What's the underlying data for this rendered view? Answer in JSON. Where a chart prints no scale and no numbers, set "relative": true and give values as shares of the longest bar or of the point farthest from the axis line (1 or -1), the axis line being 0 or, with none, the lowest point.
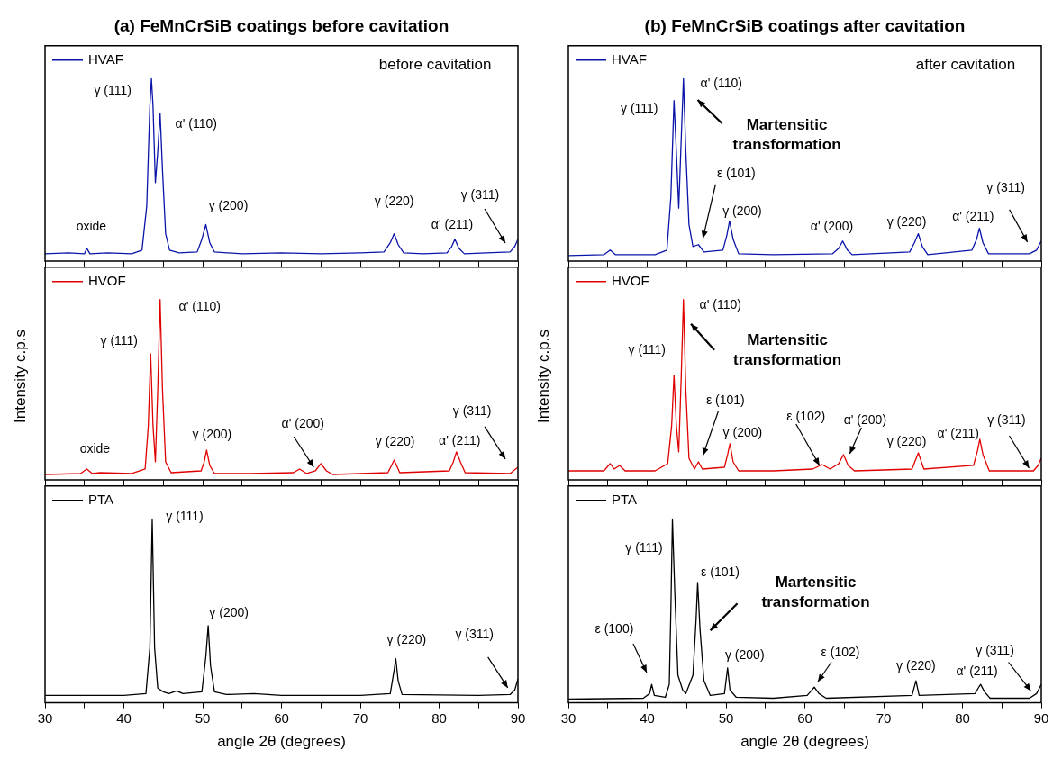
{
  "chart_data": [
    {
      "type": "line",
      "relative": true,
      "title": "(a) FeMnCrSiB coatings before cavitation",
      "legend": "top left",
      "xlim": [
        30,
        90
      ],
      "xticks": [
        30,
        {
          "value": 35,
          "label": null
        },
        40,
        {
          "value": 45,
          "label": null
        },
        50,
        {
          "value": 55,
          "label": null
        },
        60,
        {
          "value": 65,
          "label": null
        },
        70,
        {
          "value": 75,
          "label": null
        },
        80,
        {
          "value": 85,
          "label": null
        },
        90
      ],
      "tick_labels": false,
      "series": [
        {
          "name": "HVAF",
          "color": "#0a14a8",
          "x": [
            30,
            33,
            35,
            35.3,
            35.7,
            38,
            41,
            42.3,
            42.9,
            43.3,
            43.5,
            43.7,
            44.0,
            44.3,
            44.6,
            44.9,
            45.3,
            45.8,
            47,
            49.3,
            49.9,
            50.4,
            50.9,
            51.5,
            55,
            60,
            65,
            70,
            73,
            73.8,
            74.3,
            74.8,
            75.5,
            78,
            81,
            81.6,
            82,
            82.5,
            83.2,
            86,
            89,
            89.6,
            90
          ],
          "values": [
            0.04,
            0.045,
            0.04,
            0.07,
            0.04,
            0.045,
            0.04,
            0.06,
            0.3,
            0.85,
            1,
            0.85,
            0.43,
            0.6,
            0.81,
            0.5,
            0.15,
            0.06,
            0.045,
            0.05,
            0.12,
            0.2,
            0.1,
            0.05,
            0.04,
            0.045,
            0.04,
            0.045,
            0.05,
            0.1,
            0.15,
            0.09,
            0.045,
            0.04,
            0.045,
            0.08,
            0.12,
            0.07,
            0.04,
            0.045,
            0.05,
            0.08,
            0.12
          ]
        }
      ],
      "annotations": [
        {
          "text": "γ (111)",
          "x": 43.5,
          "y": 1
        },
        {
          "text": "α' (110)",
          "x": 44.6,
          "y": 0.81
        },
        {
          "text": "oxide",
          "x": 35.3,
          "y": 0.07
        },
        {
          "text": "γ (200)",
          "x": 50.4,
          "y": 0.2
        },
        {
          "text": "γ (220)",
          "x": 74.3,
          "y": 0.15
        },
        {
          "text": "α' (211)",
          "x": 82,
          "y": 0.12
        },
        "γ (311)",
        "before cavitation"
      ]
    },
    {
      "type": "line",
      "relative": true,
      "ylabel": "Intensity c.p.s",
      "legend": "top left",
      "xlim": [
        30,
        90
      ],
      "xticks": [
        30,
        {
          "value": 35,
          "label": null
        },
        40,
        {
          "value": 45,
          "label": null
        },
        50,
        {
          "value": 55,
          "label": null
        },
        60,
        {
          "value": 65,
          "label": null
        },
        70,
        {
          "value": 75,
          "label": null
        },
        80,
        {
          "value": 85,
          "label": null
        },
        90
      ],
      "tick_labels": false,
      "series": [
        {
          "name": "HVOF",
          "color": "#e00000",
          "x": [
            30,
            34.5,
            35.3,
            36,
            37,
            41,
            42.7,
            43.1,
            43.4,
            43.7,
            44.0,
            44.3,
            44.6,
            44.9,
            45.3,
            46,
            49.8,
            50.2,
            50.5,
            50.9,
            51.5,
            56,
            61.5,
            62.3,
            63.2,
            64.3,
            65,
            65.7,
            66.5,
            73.5,
            74.3,
            75,
            81.3,
            81.8,
            82.2,
            82.7,
            83.3,
            89,
            90
          ],
          "values": [
            0.03,
            0.035,
            0.06,
            0.035,
            0.04,
            0.035,
            0.06,
            0.3,
            0.7,
            0.3,
            0.1,
            0.5,
            1,
            0.5,
            0.1,
            0.04,
            0.05,
            0.1,
            0.165,
            0.08,
            0.035,
            0.035,
            0.04,
            0.06,
            0.035,
            0.05,
            0.09,
            0.05,
            0.03,
            0.04,
            0.11,
            0.04,
            0.05,
            0.1,
            0.155,
            0.1,
            0.04,
            0.035,
            0.07
          ]
        }
      ],
      "annotations": [
        {
          "text": "α' (110)",
          "x": 44.6,
          "y": 1
        },
        {
          "text": "γ (111)",
          "x": 43.4,
          "y": 0.7
        },
        {
          "text": "oxide",
          "x": 35.3,
          "y": 0.06
        },
        {
          "text": "γ (200)",
          "x": 50.5,
          "y": 0.165
        },
        {
          "text": "α' (200)",
          "x": 65,
          "y": 0.09
        },
        {
          "text": "γ (220)",
          "x": 74.3,
          "y": 0.11
        },
        {
          "text": "α' (211)",
          "x": 82.2,
          "y": 0.155
        },
        "γ (311)"
      ]
    },
    {
      "type": "line",
      "relative": true,
      "xlabel": "angle 2θ (degrees)",
      "legend": "top left",
      "xlim": [
        30,
        90
      ],
      "xticks": [
        30,
        {
          "value": 35,
          "label": null
        },
        40,
        {
          "value": 45,
          "label": null
        },
        50,
        {
          "value": 55,
          "label": null
        },
        60,
        {
          "value": 65,
          "label": null
        },
        70,
        {
          "value": 75,
          "label": null
        },
        80,
        {
          "value": 85,
          "label": null
        },
        90
      ],
      "tick_labels": "x",
      "series": [
        {
          "name": "PTA",
          "color": "#000000",
          "x": [
            30,
            40,
            42.8,
            43.3,
            43.6,
            43.9,
            44.3,
            45,
            45.7,
            46.7,
            47.5,
            49.9,
            50.4,
            50.7,
            51,
            51.5,
            53,
            56.5,
            60,
            70,
            73.8,
            74.3,
            74.5,
            74.8,
            75.3,
            85,
            89,
            89.6,
            90
          ],
          "values": [
            0.04,
            0.04,
            0.05,
            0.3,
            1,
            0.3,
            0.08,
            0.06,
            0.05,
            0.065,
            0.05,
            0.06,
            0.25,
            0.42,
            0.2,
            0.06,
            0.045,
            0.05,
            0.04,
            0.04,
            0.05,
            0.18,
            0.24,
            0.12,
            0.045,
            0.04,
            0.045,
            0.07,
            0.13
          ]
        }
      ],
      "annotations": [
        {
          "text": "γ (111)",
          "x": 43.6,
          "y": 1
        },
        {
          "text": "γ (200)",
          "x": 50.7,
          "y": 0.42
        },
        {
          "text": "γ (220)",
          "x": 74.5,
          "y": 0.24
        },
        "γ (311)"
      ]
    },
    {
      "type": "line",
      "relative": true,
      "title": "(b) FeMnCrSiB coatings after cavitation",
      "legend": "top left",
      "xlim": [
        30,
        90
      ],
      "xticks": [
        30,
        {
          "value": 35,
          "label": null
        },
        40,
        {
          "value": 45,
          "label": null
        },
        50,
        {
          "value": 55,
          "label": null
        },
        60,
        {
          "value": 65,
          "label": null
        },
        70,
        {
          "value": 75,
          "label": null
        },
        80,
        {
          "value": 85,
          "label": null
        },
        90
      ],
      "tick_labels": false,
      "series": [
        {
          "name": "HVAF",
          "color": "#0a14a8",
          "x": [
            30,
            34.5,
            35.3,
            36,
            41,
            42.5,
            43.0,
            43.4,
            43.7,
            44.0,
            44.3,
            44.6,
            44.9,
            45.3,
            45.8,
            46.5,
            47.2,
            49.6,
            50.1,
            50.45,
            50.9,
            51.6,
            56,
            63.5,
            64.3,
            64.8,
            65.4,
            66,
            73.3,
            73.9,
            74.4,
            74.9,
            75.6,
            81.2,
            81.8,
            82.15,
            82.6,
            83.3,
            88.5,
            89.4,
            90
          ],
          "values": [
            0.03,
            0.035,
            0.06,
            0.035,
            0.035,
            0.06,
            0.35,
            0.88,
            0.6,
            0.29,
            0.65,
            1,
            0.6,
            0.2,
            0.08,
            0.09,
            0.05,
            0.06,
            0.14,
            0.22,
            0.12,
            0.04,
            0.035,
            0.04,
            0.07,
            0.11,
            0.06,
            0.035,
            0.05,
            0.1,
            0.15,
            0.08,
            0.035,
            0.06,
            0.12,
            0.18,
            0.1,
            0.04,
            0.04,
            0.06,
            0.11
          ]
        }
      ],
      "annotations": [
        {
          "text": "α' (110)",
          "x": 44.6,
          "y": 1
        },
        {
          "text": "γ (111)",
          "x": 43.4,
          "y": 0.88
        },
        "Martensitic transformation",
        {
          "text": "ε (101)",
          "x": 46.5,
          "y": 0.09
        },
        {
          "text": "γ (200)",
          "x": 50.45,
          "y": 0.22
        },
        {
          "text": "α' (200)",
          "x": 64.8,
          "y": 0.11
        },
        {
          "text": "γ (220)",
          "x": 74.4,
          "y": 0.15
        },
        {
          "text": "α' (211)",
          "x": 82.15,
          "y": 0.18
        },
        "γ (311)",
        "after cavitation"
      ]
    },
    {
      "type": "line",
      "relative": true,
      "ylabel": "Intensity c.p.s",
      "legend": "top left",
      "xlim": [
        30,
        90
      ],
      "xticks": [
        30,
        {
          "value": 35,
          "label": null
        },
        40,
        {
          "value": 45,
          "label": null
        },
        50,
        {
          "value": 55,
          "label": null
        },
        60,
        {
          "value": 65,
          "label": null
        },
        70,
        {
          "value": 75,
          "label": null
        },
        80,
        {
          "value": 85,
          "label": null
        },
        90
      ],
      "tick_labels": false,
      "series": [
        {
          "name": "HVOF",
          "color": "#e00000",
          "x": [
            30,
            34.5,
            35.3,
            35.8,
            36.5,
            37.2,
            41,
            42.6,
            43.1,
            43.4,
            43.7,
            44.0,
            44.3,
            44.6,
            44.9,
            45.3,
            46,
            46.5,
            47,
            49.8,
            50.2,
            50.5,
            50.9,
            51.6,
            56,
            61,
            62.2,
            63.2,
            64.3,
            64.9,
            65.5,
            66.3,
            73.6,
            74.4,
            75.1,
            81.4,
            81.9,
            82.2,
            82.6,
            83.4,
            89,
            89.6,
            90
          ],
          "values": [
            0.05,
            0.05,
            0.09,
            0.06,
            0.08,
            0.05,
            0.05,
            0.09,
            0.3,
            0.58,
            0.3,
            0.155,
            0.55,
            1,
            0.5,
            0.12,
            0.06,
            0.1,
            0.06,
            0.07,
            0.14,
            0.2,
            0.1,
            0.05,
            0.05,
            0.06,
            0.085,
            0.06,
            0.09,
            0.14,
            0.08,
            0.05,
            0.06,
            0.15,
            0.06,
            0.08,
            0.16,
            0.225,
            0.14,
            0.05,
            0.05,
            0.08,
            0.12
          ]
        }
      ],
      "annotations": [
        {
          "text": "α' (110)",
          "x": 44.6,
          "y": 1
        },
        {
          "text": "γ (111)",
          "x": 43.4,
          "y": 0.58
        },
        "Martensitic transformation",
        {
          "text": "ε (101)",
          "x": 46.5,
          "y": 0.1
        },
        {
          "text": "γ (200)",
          "x": 50.5,
          "y": 0.2
        },
        {
          "text": "ε (102)",
          "x": 62.2,
          "y": 0.085
        },
        {
          "text": "α' (200)",
          "x": 64.9,
          "y": 0.14
        },
        {
          "text": "γ (220)",
          "x": 74.4,
          "y": 0.15
        },
        {
          "text": "α' (211)",
          "x": 82.2,
          "y": 0.225
        },
        {
          "text": "γ (311)",
          "x": 90,
          "y": 0.12
        }
      ]
    },
    {
      "type": "line",
      "relative": true,
      "xlabel": "angle 2θ (degrees)",
      "legend": "top left",
      "xlim": [
        30,
        90
      ],
      "xticks": [
        30,
        {
          "value": 35,
          "label": null
        },
        40,
        {
          "value": 45,
          "label": null
        },
        50,
        {
          "value": 55,
          "label": null
        },
        60,
        {
          "value": 65,
          "label": null
        },
        70,
        {
          "value": 75,
          "label": null
        },
        80,
        {
          "value": 85,
          "label": null
        },
        90
      ],
      "tick_labels": "x",
      "series": [
        {
          "name": "PTA",
          "color": "#000000",
          "x": [
            30,
            39.5,
            40.3,
            40.57,
            40.9,
            42.3,
            42.8,
            43.0,
            43.2,
            43.5,
            43.9,
            44.5,
            44.9,
            45.8,
            46.2,
            46.4,
            46.7,
            47.2,
            48,
            49.8,
            50.2,
            50.5,
            51.3,
            56,
            60.3,
            60.9,
            61.2,
            61.8,
            62.7,
            73.6,
            74.1,
            74.5,
            81.6,
            82.0,
            82.3,
            82.8,
            83.5,
            88.5,
            89.4,
            90
          ],
          "values": [
            0.02,
            0.025,
            0.05,
            0.1,
            0.04,
            0.03,
            0.1,
            0.5,
            1,
            0.6,
            0.15,
            0.07,
            0.05,
            0.15,
            0.45,
            0.655,
            0.4,
            0.12,
            0.04,
            0.05,
            0.19,
            0.07,
            0.03,
            0.025,
            0.04,
            0.07,
            0.085,
            0.05,
            0.025,
            0.04,
            0.12,
            0.04,
            0.05,
            0.08,
            0.1,
            0.06,
            0.025,
            0.025,
            0.05,
            0.1
          ]
        }
      ],
      "annotations": [
        {
          "text": "γ (111)",
          "x": 43.2,
          "y": 1
        },
        {
          "text": "ε (101)",
          "x": 46.4,
          "y": 0.655
        },
        "Martensitic transformation",
        "ε (100)",
        {
          "text": "γ (200)",
          "x": 50.2,
          "y": 0.19
        },
        {
          "text": "ε (102)",
          "x": 61.2,
          "y": 0.085
        },
        {
          "text": "γ (220)",
          "x": 74.1,
          "y": 0.12
        },
        {
          "text": "α' (211)",
          "x": 82.3,
          "y": 0.1
        },
        "γ (311)"
      ]
    }
  ]
}
